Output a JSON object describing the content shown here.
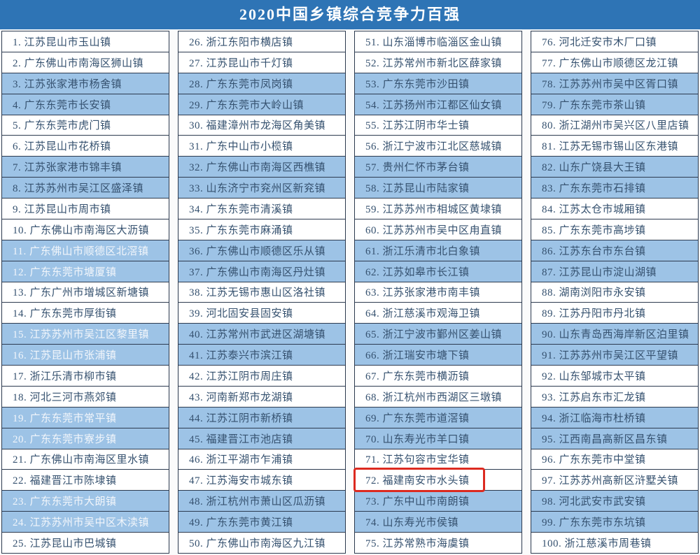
{
  "header": {
    "title": "2020中国乡镇综合竞争力百强"
  },
  "theme": {
    "page_bg": "#fbfbfb",
    "header_bg": "#2e74b5",
    "header_text": "#ffffff",
    "row_blue": "#9dc3e6",
    "row_white": "#ffffff",
    "text_dark": "#35516f",
    "text_light": "#f2f6fb",
    "border_color": "#2c3a4f",
    "highlight_red": "#dc2a20"
  },
  "table": {
    "rank_separator": ". ",
    "highlight_rank": 72,
    "light_text_ranks": [
      11,
      12,
      15,
      16,
      19,
      20,
      23,
      24
    ],
    "columns": [
      [
        {
          "rank": 1,
          "name": "江苏昆山市玉山镇"
        },
        {
          "rank": 2,
          "name": "广东佛山市南海区狮山镇"
        },
        {
          "rank": 3,
          "name": "江苏张家港市杨舍镇"
        },
        {
          "rank": 4,
          "name": "广东东莞市长安镇"
        },
        {
          "rank": 5,
          "name": "广东东莞市虎门镇"
        },
        {
          "rank": 6,
          "name": "江苏昆山市花桥镇"
        },
        {
          "rank": 7,
          "name": "江苏张家港市锦丰镇"
        },
        {
          "rank": 8,
          "name": "江苏苏州市吴江区盛泽镇"
        },
        {
          "rank": 9,
          "name": "江苏昆山市周市镇"
        },
        {
          "rank": 10,
          "name": "广东佛山市南海区大沥镇"
        },
        {
          "rank": 11,
          "name": "广东佛山市顺德区北滘镇"
        },
        {
          "rank": 12,
          "name": "广东东莞市塘厦镇"
        },
        {
          "rank": 13,
          "name": "广东广州市增城区新塘镇"
        },
        {
          "rank": 14,
          "name": "广东东莞市厚街镇"
        },
        {
          "rank": 15,
          "name": "江苏苏州市吴江区黎里镇"
        },
        {
          "rank": 16,
          "name": "江苏昆山市张浦镇"
        },
        {
          "rank": 17,
          "name": "浙江乐清市柳市镇"
        },
        {
          "rank": 18,
          "name": "河北三河市燕郊镇"
        },
        {
          "rank": 19,
          "name": "广东东莞市常平镇"
        },
        {
          "rank": 20,
          "name": "广东东莞市寮步镇"
        },
        {
          "rank": 21,
          "name": "广东佛山市南海区里水镇"
        },
        {
          "rank": 22,
          "name": "福建晋江市陈埭镇"
        },
        {
          "rank": 23,
          "name": "广东东莞市大朗镇"
        },
        {
          "rank": 24,
          "name": "江苏苏州市吴中区木渎镇"
        },
        {
          "rank": 25,
          "name": "江苏昆山市巴城镇"
        }
      ],
      [
        {
          "rank": 26,
          "name": "浙江东阳市横店镇"
        },
        {
          "rank": 27,
          "name": "江苏昆山市千灯镇"
        },
        {
          "rank": 28,
          "name": "广东东莞市凤岗镇"
        },
        {
          "rank": 29,
          "name": "广东东莞市大岭山镇"
        },
        {
          "rank": 30,
          "name": "福建漳州市龙海区角美镇"
        },
        {
          "rank": 31,
          "name": "广东中山市小榄镇"
        },
        {
          "rank": 32,
          "name": "广东佛山市南海区西樵镇"
        },
        {
          "rank": 33,
          "name": "山东济宁市兖州区新兖镇"
        },
        {
          "rank": 34,
          "name": "广东东莞市清溪镇"
        },
        {
          "rank": 35,
          "name": "广东东莞市麻涌镇"
        },
        {
          "rank": 36,
          "name": "广东佛山市顺德区乐从镇"
        },
        {
          "rank": 37,
          "name": "广东佛山市南海区丹灶镇"
        },
        {
          "rank": 38,
          "name": "江苏无锡市惠山区洛社镇"
        },
        {
          "rank": 39,
          "name": "河北固安县固安镇"
        },
        {
          "rank": 40,
          "name": "江苏常州市武进区湖塘镇"
        },
        {
          "rank": 41,
          "name": "江苏泰兴市滨江镇"
        },
        {
          "rank": 42,
          "name": "江苏江阴市周庄镇"
        },
        {
          "rank": 43,
          "name": "河南新郑市龙湖镇"
        },
        {
          "rank": 44,
          "name": "江苏江阴市新桥镇"
        },
        {
          "rank": 45,
          "name": "福建晋江市池店镇"
        },
        {
          "rank": 46,
          "name": "浙江平湖市乍浦镇"
        },
        {
          "rank": 47,
          "name": "江苏海安市城东镇"
        },
        {
          "rank": 48,
          "name": "浙江杭州市萧山区瓜沥镇"
        },
        {
          "rank": 49,
          "name": "广东东莞市黄江镇"
        },
        {
          "rank": 50,
          "name": "广东佛山市南海区九江镇"
        }
      ],
      [
        {
          "rank": 51,
          "name": "山东淄博市临淄区金山镇"
        },
        {
          "rank": 52,
          "name": "江苏常州市新北区薛家镇"
        },
        {
          "rank": 53,
          "name": "广东东莞市沙田镇"
        },
        {
          "rank": 54,
          "name": "江苏扬州市江都区仙女镇"
        },
        {
          "rank": 55,
          "name": "江苏江阴市华士镇"
        },
        {
          "rank": 56,
          "name": "浙江宁波市江北区慈城镇"
        },
        {
          "rank": 57,
          "name": "贵州仁怀市茅台镇"
        },
        {
          "rank": 58,
          "name": "江苏昆山市陆家镇"
        },
        {
          "rank": 59,
          "name": "江苏苏州市相城区黄埭镇"
        },
        {
          "rank": 60,
          "name": "江苏苏州市吴中区甪直镇"
        },
        {
          "rank": 61,
          "name": "浙江乐清市北白象镇"
        },
        {
          "rank": 62,
          "name": "江苏如皋市长江镇"
        },
        {
          "rank": 63,
          "name": "江苏张家港市南丰镇"
        },
        {
          "rank": 64,
          "name": "浙江慈溪市观海卫镇"
        },
        {
          "rank": 65,
          "name": "浙江宁波市鄞州区姜山镇"
        },
        {
          "rank": 66,
          "name": "浙江瑞安市塘下镇"
        },
        {
          "rank": 67,
          "name": "广东东莞市横沥镇"
        },
        {
          "rank": 68,
          "name": "浙江杭州市西湖区三墩镇"
        },
        {
          "rank": 69,
          "name": "广东东莞市道滘镇"
        },
        {
          "rank": 70,
          "name": "山东寿光市羊口镇"
        },
        {
          "rank": 71,
          "name": "江苏句容市宝华镇"
        },
        {
          "rank": 72,
          "name": "福建南安市水头镇"
        },
        {
          "rank": 73,
          "name": "广东中山市南朗镇"
        },
        {
          "rank": 74,
          "name": "山东寿光市侯镇"
        },
        {
          "rank": 75,
          "name": "江苏常熟市海虞镇"
        }
      ],
      [
        {
          "rank": 76,
          "name": "河北迁安市木厂口镇"
        },
        {
          "rank": 77,
          "name": "广东佛山市顺德区龙江镇"
        },
        {
          "rank": 78,
          "name": "江苏苏州市吴中区胥口镇"
        },
        {
          "rank": 79,
          "name": "广东东莞市茶山镇"
        },
        {
          "rank": 80,
          "name": "浙江湖州市吴兴区八里店镇"
        },
        {
          "rank": 81,
          "name": "江苏无锡市锡山区东港镇"
        },
        {
          "rank": 82,
          "name": "山东广饶县大王镇"
        },
        {
          "rank": 83,
          "name": "广东东莞市石排镇"
        },
        {
          "rank": 84,
          "name": "江苏太仓市城厢镇"
        },
        {
          "rank": 85,
          "name": "广东东莞市高埗镇"
        },
        {
          "rank": 86,
          "name": "江苏东台市东台镇"
        },
        {
          "rank": 87,
          "name": "江苏昆山市淀山湖镇"
        },
        {
          "rank": 88,
          "name": "湖南浏阳市永安镇"
        },
        {
          "rank": 89,
          "name": "江苏丹阳市丹北镇"
        },
        {
          "rank": 90,
          "name": "山东青岛西海岸新区泊里镇"
        },
        {
          "rank": 91,
          "name": "江苏苏州市吴江区平望镇"
        },
        {
          "rank": 92,
          "name": "山东邹城市太平镇"
        },
        {
          "rank": 93,
          "name": "江苏启东市汇龙镇"
        },
        {
          "rank": 94,
          "name": "浙江临海市杜桥镇"
        },
        {
          "rank": 95,
          "name": "江西南昌高新区昌东镇"
        },
        {
          "rank": 96,
          "name": "广东东莞市中堂镇"
        },
        {
          "rank": 97,
          "name": "江苏苏州高新区浒墅关镇"
        },
        {
          "rank": 98,
          "name": "河北武安市武安镇"
        },
        {
          "rank": 99,
          "name": "广东东莞市东坑镇"
        },
        {
          "rank": 100,
          "name": "浙江慈溪市周巷镇"
        }
      ]
    ]
  }
}
